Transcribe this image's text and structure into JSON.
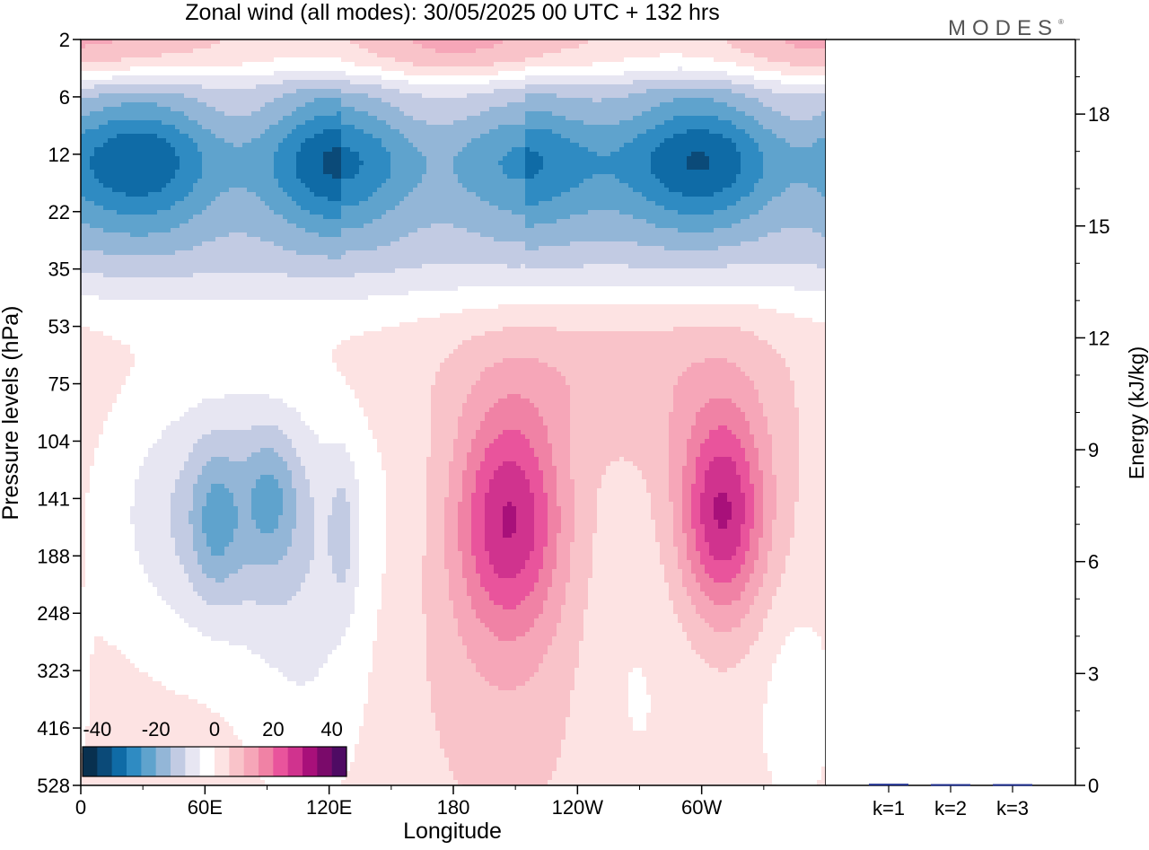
{
  "title": "Zonal wind (all modes):  30/05/2025  00 UTC  + 132 hrs",
  "logo": "MODES",
  "logo_mark": "®",
  "chart_data": [
    {
      "type": "heatmap",
      "title": "Zonal wind (all modes):  30/05/2025  00 UTC  + 132 hrs",
      "xlabel": "Longitude",
      "ylabel": "Pressure levels (hPa)",
      "x_ticks": [
        "0",
        "60E",
        "120E",
        "180",
        "120W",
        "60W"
      ],
      "x_tick_values": [
        0,
        60,
        120,
        180,
        240,
        300
      ],
      "xlim": [
        0,
        360
      ],
      "y_ticks": [
        "2",
        "6",
        "12",
        "22",
        "35",
        "53",
        "75",
        "104",
        "141",
        "188",
        "248",
        "323",
        "416",
        "528"
      ],
      "y_scale": "levels",
      "colorbar": {
        "ticks": [
          "-40",
          "-20",
          "0",
          "20",
          "40"
        ],
        "tick_values": [
          -40,
          -20,
          0,
          20,
          40
        ],
        "range": [
          -45,
          45
        ],
        "colors": [
          "#08304f",
          "#0b4a78",
          "#0f6ba6",
          "#2f8bc2",
          "#5fa3cd",
          "#93b6d7",
          "#c2cbe3",
          "#e7e6f2",
          "#ffffff",
          "#fde3e3",
          "#f9c3c9",
          "#f6a6b8",
          "#f082a5",
          "#e9549c",
          "#d0338e",
          "#a8107a",
          "#7a0a6a",
          "#4e0b63"
        ],
        "position": "bottom-left"
      },
      "features": [
        {
          "name": "polar-night jet band",
          "sign": "easterly",
          "levels_hPa": [
            8,
            30
          ],
          "value_range": [
            -35,
            -15
          ]
        },
        {
          "name": "upper westerlies",
          "sign": "westerly",
          "levels_hPa": [
            2,
            5
          ],
          "value_range": [
            3,
            20
          ]
        },
        {
          "name": "easterly cell",
          "lon_range": [
            15,
            140
          ],
          "levels_hPa": [
            75,
            330
          ],
          "peak": -22
        },
        {
          "name": "westerly jet 1",
          "lon": 210,
          "level_hPa": 141,
          "peak": 25
        },
        {
          "name": "westerly jet 2",
          "lon": 310,
          "level_hPa": 141,
          "peak": 25
        }
      ]
    },
    {
      "type": "bar",
      "ylabel": "Energy (kJ/kg)",
      "categories": [
        "k=1",
        "k=2",
        "k=3"
      ],
      "values": [
        0.02,
        0.01,
        0.01
      ],
      "ylim": [
        0,
        20
      ],
      "y_ticks": [
        0,
        3,
        6,
        9,
        12,
        15,
        18
      ],
      "bar_color": "#1f2f8f"
    }
  ]
}
